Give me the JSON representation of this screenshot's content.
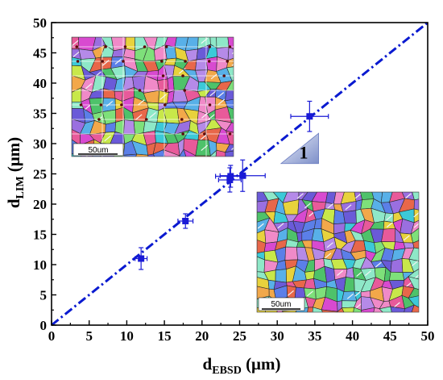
{
  "chart_data": {
    "type": "scatter",
    "xlabel": {
      "main": "d",
      "sub": "EBSD",
      "unit": " (μm)"
    },
    "ylabel": {
      "main": "d",
      "sub": "LIM",
      "unit": " (μm)"
    },
    "xlim": [
      0,
      50
    ],
    "ylim": [
      0,
      50
    ],
    "xticks": [
      0,
      5,
      10,
      15,
      20,
      25,
      30,
      35,
      40,
      45,
      50
    ],
    "yticks": [
      0,
      5,
      10,
      15,
      20,
      25,
      30,
      35,
      40,
      45,
      50
    ],
    "grid": false,
    "series": [
      {
        "marker": "square",
        "color": "#1a1ad6",
        "points": [
          {
            "x": 11.9,
            "y": 11.0,
            "xerr": 0.8,
            "yerr": 1.8
          },
          {
            "x": 17.8,
            "y": 17.2,
            "xerr": 1.0,
            "yerr": 1.2
          },
          {
            "x": 23.7,
            "y": 24.0,
            "xerr": 1.5,
            "yerr": 2.0
          },
          {
            "x": 23.8,
            "y": 24.6,
            "xerr": 2.0,
            "yerr": 1.8
          },
          {
            "x": 25.4,
            "y": 24.7,
            "xerr": 3.0,
            "yerr": 2.6
          },
          {
            "x": 34.3,
            "y": 34.5,
            "xerr": 2.5,
            "yerr": 2.5
          }
        ]
      }
    ],
    "reference_line": {
      "from": [
        0,
        0
      ],
      "to": [
        50,
        50
      ],
      "style": "dash-dot",
      "color": "#0a1ad0"
    },
    "slope_annotation": {
      "label": "1",
      "from": [
        30.5,
        26.7
      ],
      "to": [
        35.5,
        26.7
      ],
      "apex": [
        35.5,
        31.7
      ]
    },
    "insets": [
      {
        "name": "inset-grain-map-with-grid",
        "scale_bar_label": "50um"
      },
      {
        "name": "inset-grain-map",
        "scale_bar_label": "50um"
      }
    ]
  }
}
